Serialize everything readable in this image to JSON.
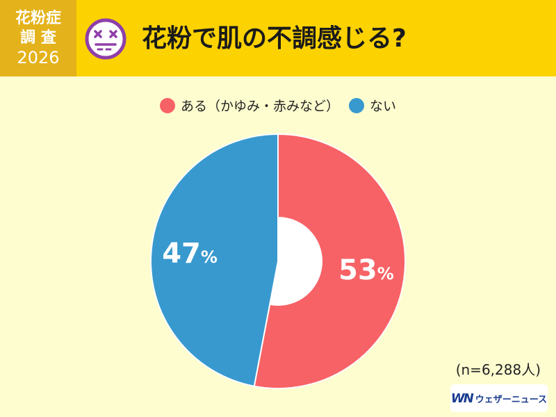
{
  "header": {
    "badge_line1": "花粉症",
    "badge_line2": "調 査",
    "badge_year": "2026",
    "title": "花粉で肌の不調感じる?",
    "face_icon": "dizzy-face-icon"
  },
  "colors": {
    "header_bg": "#fcd200",
    "badge_bg": "#e4b21a",
    "page_bg": "#fefdd0",
    "face": "#8e3fa8",
    "series_yes": "#f76266",
    "series_no": "#3899cf"
  },
  "chart_data": {
    "type": "pie",
    "donut": true,
    "categories": [
      "ある（かゆみ・赤みなど）",
      "ない"
    ],
    "values": [
      53,
      47
    ],
    "data_labels": [
      "53",
      "47"
    ],
    "unit": "%",
    "colors": [
      "#f76266",
      "#3899cf"
    ],
    "legend_position": "top-center"
  },
  "footer": {
    "sample_size": "(n=6,288人)",
    "logo_mark": "WN",
    "logo_text": "ウェザーニュース"
  }
}
